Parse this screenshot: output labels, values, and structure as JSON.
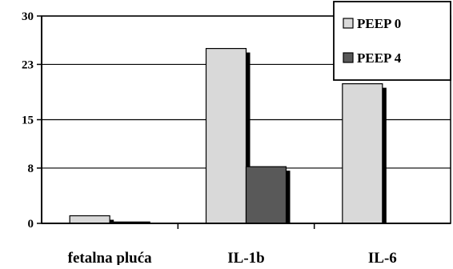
{
  "chart_data": {
    "type": "bar",
    "title": "",
    "xlabel": "",
    "ylabel": "",
    "categories": [
      "fetalna pluća",
      "IL-1b",
      "IL-6"
    ],
    "series": [
      {
        "name": "PEEP 0",
        "values": [
          1.1,
          25.3,
          20.2
        ],
        "color": "#d9d9d9"
      },
      {
        "name": "PEEP 4",
        "values": [
          0.2,
          8.2,
          0
        ],
        "color": "#595959"
      }
    ],
    "ylim": [
      0,
      30
    ],
    "yticks": [
      0,
      8,
      15,
      23,
      30
    ],
    "grid": true,
    "legend_position": "top-right",
    "shadow_color": "#000000"
  }
}
